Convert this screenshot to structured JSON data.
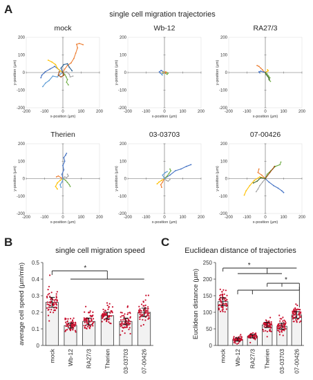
{
  "panel_a": {
    "letter": "A",
    "title": "single cell migration trajectories"
  },
  "panel_b": {
    "letter": "B",
    "title": "single cell migration speed"
  },
  "panel_c": {
    "letter": "C",
    "title": "Euclidean distance of trajectories"
  },
  "colors": {
    "bar_fill": "#f2f2f2",
    "points": "#c8102e",
    "bracket": "#222222",
    "track_palette": [
      "#4472c4",
      "#ed7d31",
      "#ffc000",
      "#70ad47",
      "#a5a5a5",
      "#5b9bd5",
      "#255e91",
      "#9e480e",
      "#43682b",
      "#997300"
    ]
  },
  "chart_data": [
    {
      "type": "scatter",
      "title": "mock",
      "xlabel": "x-position (µm)",
      "ylabel": "y-position (µm)",
      "xlim": [
        -200,
        200
      ],
      "ylim": [
        -200,
        200
      ],
      "xticks": [
        "-200",
        "-100",
        "0",
        "100",
        "200"
      ],
      "yticks": [
        "-200",
        "-100",
        "0",
        "100",
        "200"
      ],
      "series": [
        {
          "color": "#ed7d31",
          "x": [
            0,
            10,
            25,
            45,
            60,
            70,
            80,
            75,
            90,
            110
          ],
          "y": [
            0,
            20,
            40,
            55,
            80,
            110,
            140,
            160,
            165,
            158
          ]
        },
        {
          "color": "#4472c4",
          "x": [
            0,
            -20,
            -45,
            -70,
            -95,
            -115,
            -120
          ],
          "y": [
            0,
            15,
            35,
            20,
            5,
            -15,
            -30
          ]
        },
        {
          "color": "#ffc000",
          "x": [
            0,
            -15,
            -30,
            -40,
            -60,
            -80
          ],
          "y": [
            0,
            10,
            25,
            45,
            60,
            70
          ]
        },
        {
          "color": "#70ad47",
          "x": [
            0,
            10,
            18,
            25,
            20,
            30
          ],
          "y": [
            0,
            -10,
            -25,
            -40,
            -55,
            -70
          ]
        },
        {
          "color": "#5b9bd5",
          "x": [
            0,
            -15,
            -30,
            -55,
            -75,
            -95,
            -110
          ],
          "y": [
            0,
            -10,
            -25,
            -20,
            -45,
            -60,
            -80
          ]
        },
        {
          "color": "#a5a5a5",
          "x": [
            0,
            20,
            35,
            40,
            55
          ],
          "y": [
            0,
            5,
            -10,
            -25,
            -20
          ]
        },
        {
          "color": "#255e91",
          "x": [
            0,
            -10,
            5,
            25,
            35,
            50
          ],
          "y": [
            0,
            25,
            45,
            50,
            30,
            10
          ]
        },
        {
          "color": "#9e480e",
          "x": [
            0,
            5,
            -10,
            -25,
            -20
          ],
          "y": [
            0,
            -15,
            -25,
            -15,
            5
          ]
        }
      ]
    },
    {
      "type": "scatter",
      "title": "Wb-12",
      "xlabel": "x-position (µm)",
      "ylabel": "y-position (µm)",
      "xlim": [
        -200,
        200
      ],
      "ylim": [
        -200,
        200
      ],
      "xticks": [
        "-200",
        "-100",
        "0",
        "100",
        "200"
      ],
      "yticks": [
        "-200",
        "-100",
        "0",
        "100",
        "200"
      ],
      "series": [
        {
          "color": "#4472c4",
          "x": [
            0,
            -8,
            -18,
            -28,
            -22
          ],
          "y": [
            0,
            6,
            12,
            4,
            -4
          ]
        },
        {
          "color": "#70ad47",
          "x": [
            0,
            8,
            15,
            20,
            12
          ],
          "y": [
            0,
            -6,
            -10,
            -4,
            2
          ]
        },
        {
          "color": "#ffc000",
          "x": [
            0,
            -6,
            -12,
            -4
          ],
          "y": [
            0,
            -5,
            -2,
            3
          ]
        },
        {
          "color": "#ed7d31",
          "x": [
            0,
            6,
            10,
            4
          ],
          "y": [
            0,
            4,
            0,
            -3
          ]
        },
        {
          "color": "#5b9bd5",
          "x": [
            0,
            -10,
            -16,
            -12
          ],
          "y": [
            0,
            -4,
            -9,
            -14
          ]
        }
      ]
    },
    {
      "type": "scatter",
      "title": "RA27/3",
      "xlabel": "x-position (µm)",
      "ylabel": "y-position (µm)",
      "xlim": [
        -200,
        200
      ],
      "ylim": [
        -200,
        200
      ],
      "xticks": [
        "-200",
        "-100",
        "0",
        "100",
        "200"
      ],
      "yticks": [
        "-200",
        "-100",
        "0",
        "100",
        "200"
      ],
      "series": [
        {
          "color": "#ed7d31",
          "x": [
            0,
            -8,
            -15,
            -25,
            -35,
            -45
          ],
          "y": [
            0,
            5,
            15,
            25,
            35,
            40
          ]
        },
        {
          "color": "#4472c4",
          "x": [
            0,
            -10,
            -25,
            -35,
            -30
          ],
          "y": [
            0,
            3,
            8,
            4,
            -2
          ]
        },
        {
          "color": "#70ad47",
          "x": [
            0,
            10,
            18,
            25,
            20,
            28
          ],
          "y": [
            0,
            -8,
            -20,
            -30,
            -40,
            -50
          ]
        },
        {
          "color": "#ffc000",
          "x": [
            0,
            8,
            16,
            12
          ],
          "y": [
            0,
            5,
            10,
            16
          ]
        },
        {
          "color": "#43682b",
          "x": [
            0,
            5,
            12,
            18,
            22
          ],
          "y": [
            0,
            -12,
            -20,
            -30,
            -42
          ]
        }
      ]
    },
    {
      "type": "scatter",
      "title": "Therien",
      "xlabel": "x-position (µm)",
      "ylabel": "y-position (µm)",
      "xlim": [
        -200,
        200
      ],
      "ylim": [
        -200,
        200
      ],
      "xticks": [
        "-200",
        "-100",
        "0",
        "100",
        "200"
      ],
      "yticks": [
        "-200",
        "-100",
        "0",
        "100",
        "200"
      ],
      "series": [
        {
          "color": "#4472c4",
          "x": [
            0,
            -5,
            5,
            0,
            10,
            5,
            15,
            20
          ],
          "y": [
            0,
            25,
            50,
            75,
            100,
            120,
            135,
            145
          ]
        },
        {
          "color": "#ffc000",
          "x": [
            0,
            -15,
            -30,
            -40,
            -30
          ],
          "y": [
            0,
            -10,
            -25,
            -45,
            -60
          ]
        },
        {
          "color": "#70ad47",
          "x": [
            0,
            15,
            25,
            35,
            40
          ],
          "y": [
            0,
            -10,
            -22,
            -35,
            -45
          ]
        },
        {
          "color": "#ed7d31",
          "x": [
            0,
            -10,
            -25,
            -35
          ],
          "y": [
            0,
            5,
            15,
            10
          ]
        },
        {
          "color": "#a5a5a5",
          "x": [
            0,
            10,
            20,
            30,
            25
          ],
          "y": [
            0,
            10,
            5,
            15,
            25
          ]
        },
        {
          "color": "#5b9bd5",
          "x": [
            0,
            -5,
            -15,
            -10
          ],
          "y": [
            0,
            -20,
            -35,
            -50
          ]
        }
      ]
    },
    {
      "type": "scatter",
      "title": "03-03703",
      "xlabel": "x-position (µm)",
      "ylabel": "y-position (µm)",
      "xlim": [
        -200,
        200
      ],
      "ylim": [
        -200,
        200
      ],
      "xticks": [
        "-200",
        "-100",
        "0",
        "100",
        "200"
      ],
      "yticks": [
        "-200",
        "-100",
        "0",
        "100",
        "200"
      ],
      "series": [
        {
          "color": "#4472c4",
          "x": [
            0,
            30,
            60,
            90,
            120,
            145
          ],
          "y": [
            0,
            20,
            45,
            55,
            70,
            80
          ]
        },
        {
          "color": "#ffc000",
          "x": [
            0,
            -15,
            -30,
            -40
          ],
          "y": [
            0,
            -10,
            -20,
            -30
          ]
        },
        {
          "color": "#ed7d31",
          "x": [
            0,
            -10,
            -20,
            -15
          ],
          "y": [
            0,
            -20,
            -35,
            -50
          ]
        },
        {
          "color": "#70ad47",
          "x": [
            0,
            15,
            25,
            35,
            30
          ],
          "y": [
            0,
            15,
            30,
            45,
            55
          ]
        },
        {
          "color": "#a5a5a5",
          "x": [
            0,
            10,
            20,
            30
          ],
          "y": [
            0,
            -10,
            -15,
            -5
          ]
        },
        {
          "color": "#5b9bd5",
          "x": [
            0,
            -10,
            5,
            15
          ],
          "y": [
            0,
            20,
            35,
            40
          ]
        }
      ]
    },
    {
      "type": "scatter",
      "title": "07-00426",
      "xlabel": "x-position (µm)",
      "ylabel": "y-position (µm)",
      "xlim": [
        -200,
        200
      ],
      "ylim": [
        -200,
        200
      ],
      "xticks": [
        "-200",
        "-100",
        "0",
        "100",
        "200"
      ],
      "yticks": [
        "-200",
        "-100",
        "0",
        "100",
        "200"
      ],
      "series": [
        {
          "color": "#ffc000",
          "x": [
            0,
            -30,
            -60,
            -85,
            -105,
            -115
          ],
          "y": [
            0,
            10,
            -10,
            -40,
            -70,
            -95
          ]
        },
        {
          "color": "#4472c4",
          "x": [
            0,
            20,
            45,
            70,
            90,
            100
          ],
          "y": [
            0,
            -20,
            -40,
            -55,
            -70,
            -80
          ]
        },
        {
          "color": "#70ad47",
          "x": [
            0,
            10,
            30,
            55,
            80,
            85
          ],
          "y": [
            0,
            25,
            45,
            70,
            80,
            95
          ]
        },
        {
          "color": "#ed7d31",
          "x": [
            0,
            -20,
            -40,
            -35
          ],
          "y": [
            0,
            20,
            35,
            55
          ]
        },
        {
          "color": "#a5a5a5",
          "x": [
            0,
            -15,
            -30,
            -40,
            -50
          ],
          "y": [
            0,
            -20,
            -40,
            -60,
            -75
          ]
        },
        {
          "color": "#9e480e",
          "x": [
            0,
            25,
            40,
            50
          ],
          "y": [
            0,
            35,
            55,
            70
          ]
        },
        {
          "color": "#43682b",
          "x": [
            0,
            -25,
            -45,
            -65
          ],
          "y": [
            0,
            5,
            -15,
            -25
          ]
        }
      ]
    },
    {
      "type": "bar",
      "ylabel": "average cell speed (µm/min)",
      "categories": [
        "mock",
        "Wb-12",
        "RA27/3",
        "Therien",
        "03-03703",
        "07-00426"
      ],
      "values": [
        0.26,
        0.12,
        0.145,
        0.18,
        0.145,
        0.2
      ],
      "error": [
        0.03,
        0.015,
        0.02,
        0.02,
        0.02,
        0.025
      ],
      "points_per_group": 60,
      "spread": [
        0.07,
        0.04,
        0.05,
        0.05,
        0.05,
        0.06
      ],
      "ylim": [
        0,
        0.5
      ],
      "yticks": [
        "0",
        "0.1",
        "0.2",
        "0.3",
        "0.4",
        "0.5"
      ],
      "significance": [
        {
          "label": "*",
          "from": 0,
          "to": [
            1,
            2,
            3,
            4,
            5
          ]
        }
      ]
    },
    {
      "type": "bar",
      "ylabel": "Euclidean distance (µm)",
      "categories": [
        "mock",
        "Wb-12",
        "RA27/3",
        "Therien",
        "03-03703",
        "07-00426"
      ],
      "values": [
        132,
        18,
        28,
        62,
        58,
        92
      ],
      "error": [
        12,
        5,
        5,
        8,
        9,
        10
      ],
      "points_per_group": 55,
      "spread": [
        30,
        8,
        8,
        18,
        22,
        25
      ],
      "ylim": [
        0,
        250
      ],
      "yticks": [
        "0",
        "50",
        "100",
        "150",
        "200",
        "250"
      ],
      "significance": [
        {
          "label": "*",
          "from": 0,
          "to": [
            1,
            2,
            3,
            4
          ]
        },
        {
          "label": "",
          "from": 5,
          "to": [
            1,
            2
          ]
        },
        {
          "label": "*",
          "from": 5,
          "to": [
            3,
            4
          ]
        }
      ]
    }
  ]
}
